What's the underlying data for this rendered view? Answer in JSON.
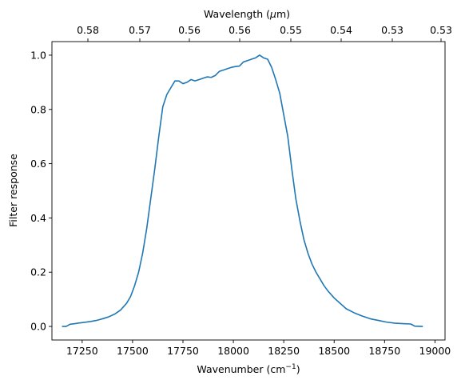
{
  "chart_data": {
    "type": "line",
    "title": "",
    "xlabel": "Wavenumber (cm",
    "xlabel_sup": "−1",
    "xlabel_end": ")",
    "ylabel": "Filter response",
    "top_xlabel": "Wavelength (",
    "top_xlabel_mu": "μ",
    "top_xlabel_end": "m)",
    "xlim": [
      17100,
      19050
    ],
    "ylim": [
      -0.05,
      1.05
    ],
    "grid": false,
    "x_ticks": [
      {
        "value": 17250,
        "label": "17250"
      },
      {
        "value": 17500,
        "label": "17500"
      },
      {
        "value": 17750,
        "label": "17750"
      },
      {
        "value": 18000,
        "label": "18000"
      },
      {
        "value": 18250,
        "label": "18250"
      },
      {
        "value": 18500,
        "label": "18500"
      },
      {
        "value": 18750,
        "label": "18750"
      },
      {
        "value": 19000,
        "label": "19000"
      }
    ],
    "y_ticks": [
      {
        "value": 0.0,
        "label": "0.0"
      },
      {
        "value": 0.2,
        "label": "0.2"
      },
      {
        "value": 0.4,
        "label": "0.4"
      },
      {
        "value": 0.6,
        "label": "0.6"
      },
      {
        "value": 0.8,
        "label": "0.8"
      },
      {
        "value": 1.0,
        "label": "1.0"
      }
    ],
    "top_ticks": [
      {
        "value": 17241,
        "label": "0.58"
      },
      {
        "value": 17544,
        "label": "0.57"
      },
      {
        "value": 17857,
        "label": "0.56"
      },
      {
        "value": 18182,
        "label": "0.56"
      },
      {
        "value": 18519,
        "label": "0.55"
      },
      {
        "value": 18868,
        "label": "0.54"
      },
      {
        "value": 19231,
        "label": "0.53"
      },
      {
        "value": 19608,
        "label": "0.53"
      }
    ],
    "series": [
      {
        "color": "#1f77b4",
        "x": [
          17150,
          17170,
          17190,
          17210,
          17230,
          17260,
          17290,
          17320,
          17350,
          17380,
          17410,
          17440,
          17470,
          17490,
          17510,
          17530,
          17550,
          17570,
          17590,
          17610,
          17630,
          17650,
          17670,
          17690,
          17710,
          17730,
          17750,
          17770,
          17790,
          17810,
          17830,
          17850,
          17870,
          17890,
          17910,
          17930,
          17950,
          17970,
          17990,
          18010,
          18030,
          18050,
          18070,
          18090,
          18110,
          18130,
          18150,
          18170,
          18190,
          18210,
          18230,
          18250,
          18270,
          18290,
          18310,
          18330,
          18350,
          18370,
          18390,
          18410,
          18430,
          18450,
          18470,
          18500,
          18530,
          18560,
          18600,
          18640,
          18680,
          18720,
          18760,
          18800,
          18850,
          18880,
          18900,
          18940
        ],
        "y": [
          0.0,
          0.0,
          0.008,
          0.01,
          0.012,
          0.015,
          0.018,
          0.022,
          0.028,
          0.035,
          0.045,
          0.06,
          0.085,
          0.11,
          0.15,
          0.2,
          0.27,
          0.36,
          0.47,
          0.58,
          0.7,
          0.81,
          0.855,
          0.88,
          0.905,
          0.905,
          0.895,
          0.9,
          0.91,
          0.905,
          0.91,
          0.915,
          0.92,
          0.918,
          0.925,
          0.94,
          0.945,
          0.95,
          0.955,
          0.958,
          0.96,
          0.975,
          0.98,
          0.985,
          0.99,
          1.0,
          0.99,
          0.985,
          0.955,
          0.91,
          0.86,
          0.78,
          0.7,
          0.58,
          0.47,
          0.39,
          0.32,
          0.27,
          0.23,
          0.2,
          0.175,
          0.15,
          0.13,
          0.105,
          0.085,
          0.065,
          0.05,
          0.038,
          0.028,
          0.022,
          0.016,
          0.012,
          0.01,
          0.009,
          0.001,
          0.0
        ]
      }
    ]
  }
}
